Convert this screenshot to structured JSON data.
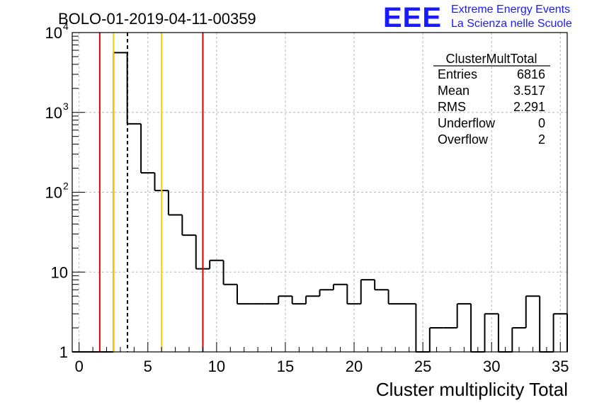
{
  "chart_data": {
    "type": "histogram",
    "title": "BOLO-01-2019-04-11-00359",
    "xlabel": "Cluster multiplicity Total",
    "ylabel": "",
    "xlim": [
      -0.5,
      35.5
    ],
    "ylim": [
      1,
      10000
    ],
    "yscale": "log",
    "grid": true,
    "bin_width": 1,
    "x_ticks": [
      0,
      5,
      10,
      15,
      20,
      25,
      30,
      35
    ],
    "y_ticks": [
      {
        "value": 1,
        "label": "1",
        "exp": ""
      },
      {
        "value": 10,
        "label": "10",
        "exp": ""
      },
      {
        "value": 100,
        "label": "10",
        "exp": "2"
      },
      {
        "value": 1000,
        "label": "10",
        "exp": "3"
      },
      {
        "value": 10000,
        "label": "10",
        "exp": "4"
      }
    ],
    "bins": [
      {
        "x": 0,
        "count": 0
      },
      {
        "x": 1,
        "count": 0
      },
      {
        "x": 2,
        "count": 0
      },
      {
        "x": 3,
        "count": 5600
      },
      {
        "x": 4,
        "count": 720
      },
      {
        "x": 5,
        "count": 175
      },
      {
        "x": 6,
        "count": 105
      },
      {
        "x": 7,
        "count": 52
      },
      {
        "x": 8,
        "count": 29
      },
      {
        "x": 9,
        "count": 11
      },
      {
        "x": 10,
        "count": 14
      },
      {
        "x": 11,
        "count": 7
      },
      {
        "x": 12,
        "count": 4
      },
      {
        "x": 13,
        "count": 4
      },
      {
        "x": 14,
        "count": 4
      },
      {
        "x": 15,
        "count": 5
      },
      {
        "x": 16,
        "count": 4
      },
      {
        "x": 17,
        "count": 5
      },
      {
        "x": 18,
        "count": 6
      },
      {
        "x": 19,
        "count": 7
      },
      {
        "x": 20,
        "count": 4
      },
      {
        "x": 21,
        "count": 8
      },
      {
        "x": 22,
        "count": 6
      },
      {
        "x": 23,
        "count": 4
      },
      {
        "x": 24,
        "count": 4
      },
      {
        "x": 25,
        "count": 0
      },
      {
        "x": 26,
        "count": 2
      },
      {
        "x": 27,
        "count": 2
      },
      {
        "x": 28,
        "count": 4
      },
      {
        "x": 29,
        "count": 0
      },
      {
        "x": 30,
        "count": 3
      },
      {
        "x": 31,
        "count": 0
      },
      {
        "x": 32,
        "count": 2
      },
      {
        "x": 33,
        "count": 5
      },
      {
        "x": 34,
        "count": 0
      },
      {
        "x": 35,
        "count": 3
      }
    ],
    "vertical_lines": [
      {
        "x": 1.5,
        "color": "#e00000",
        "style": "solid"
      },
      {
        "x": 2.5,
        "color": "#ffcc00",
        "style": "solid"
      },
      {
        "x": 3.517,
        "color": "#000000",
        "style": "dashed"
      },
      {
        "x": 6.0,
        "color": "#ffcc00",
        "style": "solid"
      },
      {
        "x": 9.0,
        "color": "#e00000",
        "style": "solid"
      }
    ],
    "stats": {
      "name": "ClusterMultTotal",
      "rows": [
        {
          "label": "Entries",
          "value": "6816"
        },
        {
          "label": "Mean",
          "value": "3.517"
        },
        {
          "label": "RMS",
          "value": "2.291"
        },
        {
          "label": "Underflow",
          "value": "0"
        },
        {
          "label": "Overflow",
          "value": "2"
        }
      ]
    }
  },
  "logo": {
    "mark": "EEE",
    "line1": "Extreme Energy Events",
    "line2": "La Scienza nelle Scuole",
    "color": "#1a1aff"
  }
}
